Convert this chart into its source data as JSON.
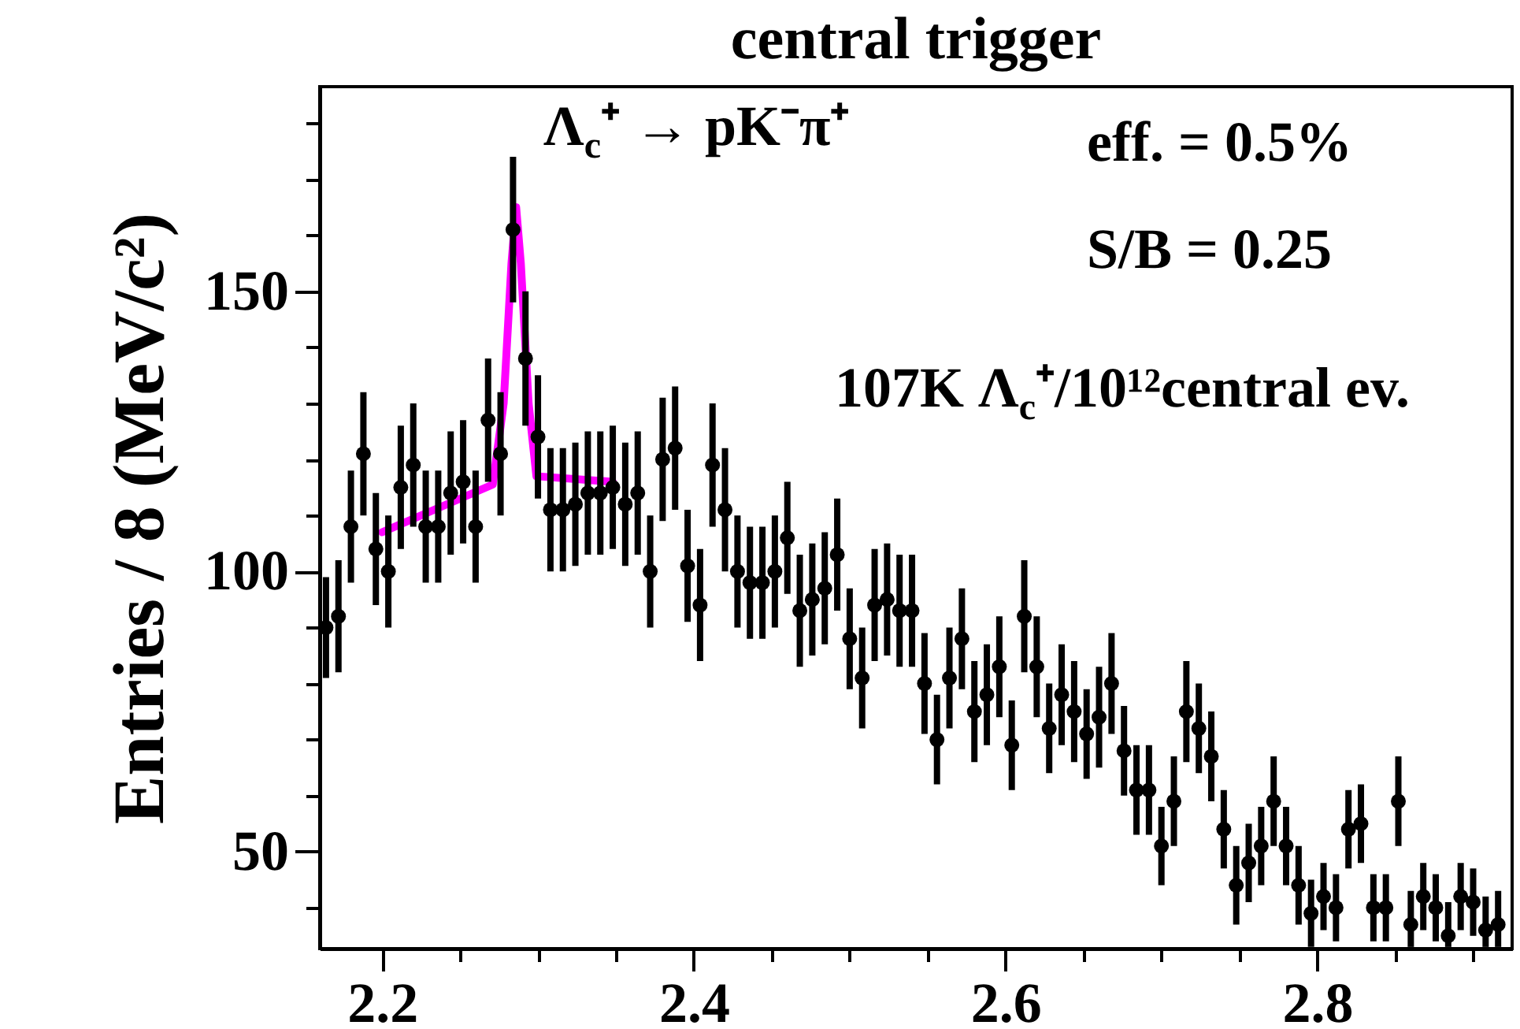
{
  "chart_data": {
    "type": "scatter",
    "title": "central trigger",
    "ylabel": "Entries / 8 (MeV/c²)",
    "annotations": [
      "Λ$_{c}$⁺ → pK⁻π⁺",
      "eff. = 0.5%",
      "S/B = 0.25",
      "107K Λ$_{c}$⁺/10¹²central ev."
    ],
    "xlim": [
      2.16,
      2.925
    ],
    "ylim": [
      32.7,
      186.5
    ],
    "xticks": [
      2.2,
      {
        "value": 2.25,
        "label": null
      },
      {
        "value": 2.3,
        "label": null
      },
      {
        "value": 2.35,
        "label": null
      },
      2.4,
      {
        "value": 2.45,
        "label": null
      },
      {
        "value": 2.5,
        "label": null
      },
      {
        "value": 2.55,
        "label": null
      },
      2.6,
      {
        "value": 2.65,
        "label": null
      },
      {
        "value": 2.7,
        "label": null
      },
      {
        "value": 2.75,
        "label": null
      },
      2.8,
      {
        "value": 2.85,
        "label": null
      },
      {
        "value": 2.9,
        "label": null
      }
    ],
    "yticks": [
      {
        "value": 40,
        "label": null
      },
      50,
      {
        "value": 60,
        "label": null
      },
      {
        "value": 70,
        "label": null
      },
      {
        "value": 80,
        "label": null
      },
      {
        "value": 90,
        "label": null
      },
      100,
      {
        "value": 110,
        "label": null
      },
      {
        "value": 120,
        "label": null
      },
      {
        "value": 130,
        "label": null
      },
      {
        "value": 140,
        "label": null
      },
      150,
      {
        "value": 160,
        "label": null
      },
      {
        "value": 170,
        "label": null
      },
      {
        "value": 180,
        "label": null
      }
    ],
    "marker": "circle",
    "series": [
      {
        "color": "#000000",
        "x": [
          2.164,
          2.172,
          2.18,
          2.188,
          2.196,
          2.204,
          2.212,
          2.22,
          2.228,
          2.236,
          2.244,
          2.252,
          2.26,
          2.268,
          2.276,
          2.284,
          2.292,
          2.3,
          2.308,
          2.316,
          2.324,
          2.332,
          2.34,
          2.348,
          2.356,
          2.364,
          2.372,
          2.38,
          2.388,
          2.396,
          2.404,
          2.412,
          2.42,
          2.428,
          2.436,
          2.444,
          2.452,
          2.46,
          2.468,
          2.476,
          2.484,
          2.492,
          2.5,
          2.508,
          2.516,
          2.524,
          2.532,
          2.54,
          2.548,
          2.556,
          2.564,
          2.572,
          2.58,
          2.588,
          2.596,
          2.604,
          2.612,
          2.62,
          2.628,
          2.636,
          2.644,
          2.652,
          2.66,
          2.668,
          2.676,
          2.684,
          2.692,
          2.7,
          2.708,
          2.716,
          2.724,
          2.732,
          2.74,
          2.748,
          2.756,
          2.764,
          2.772,
          2.78,
          2.788,
          2.796,
          2.804,
          2.812,
          2.82,
          2.828,
          2.836,
          2.844,
          2.852,
          2.86,
          2.868,
          2.876,
          2.884,
          2.892,
          2.9,
          2.908,
          2.916
        ],
        "values": [
          90,
          92,
          108,
          121,
          104,
          100,
          115,
          119,
          108,
          108,
          114,
          116,
          108,
          127,
          121,
          161,
          138,
          124,
          111,
          111,
          112,
          114,
          114,
          115,
          112,
          114,
          100,
          120,
          122,
          101,
          94,
          119,
          111,
          100,
          98,
          98,
          100,
          106,
          93,
          95,
          97,
          103,
          88,
          81,
          94,
          95,
          93,
          93,
          80,
          70,
          81,
          88,
          75,
          78,
          83,
          69,
          92,
          83,
          72,
          78,
          75,
          71,
          74,
          80,
          68,
          61,
          61,
          51,
          59,
          75,
          72,
          67,
          54,
          44,
          48,
          51,
          59,
          51,
          44,
          39,
          42,
          40,
          54,
          55,
          40,
          40,
          59,
          37,
          42,
          40,
          35,
          42,
          41,
          36,
          37
        ],
        "errors": [
          9,
          10,
          10,
          11,
          10,
          10,
          11,
          11,
          10,
          10,
          11,
          11,
          10,
          11,
          11,
          13,
          12,
          11,
          11,
          11,
          11,
          11,
          11,
          11,
          11,
          11,
          10,
          11,
          11,
          10,
          10,
          11,
          11,
          10,
          10,
          10,
          10,
          10,
          10,
          10,
          10,
          10,
          9,
          9,
          10,
          10,
          10,
          10,
          9,
          8,
          9,
          9,
          9,
          9,
          9,
          8,
          10,
          9,
          8,
          9,
          9,
          8,
          9,
          9,
          8,
          8,
          8,
          7,
          8,
          9,
          8,
          8,
          7,
          7,
          7,
          7,
          8,
          7,
          7,
          6,
          6,
          6,
          7,
          7,
          6,
          6,
          8,
          [
            33,
            43
          ],
          6,
          6,
          [
            33,
            41
          ],
          6,
          6,
          [
            33,
            42
          ],
          [
            33,
            43
          ]
        ]
      },
      {
        "type": "line",
        "marker": "none",
        "color": "#ff00ff",
        "x": [
          2.2,
          2.271,
          2.278,
          2.283,
          2.286,
          2.289,
          2.294,
          2.299,
          2.348
        ],
        "values": [
          107,
          115.5,
          130,
          155,
          165,
          155,
          130,
          117,
          116
        ]
      }
    ]
  }
}
